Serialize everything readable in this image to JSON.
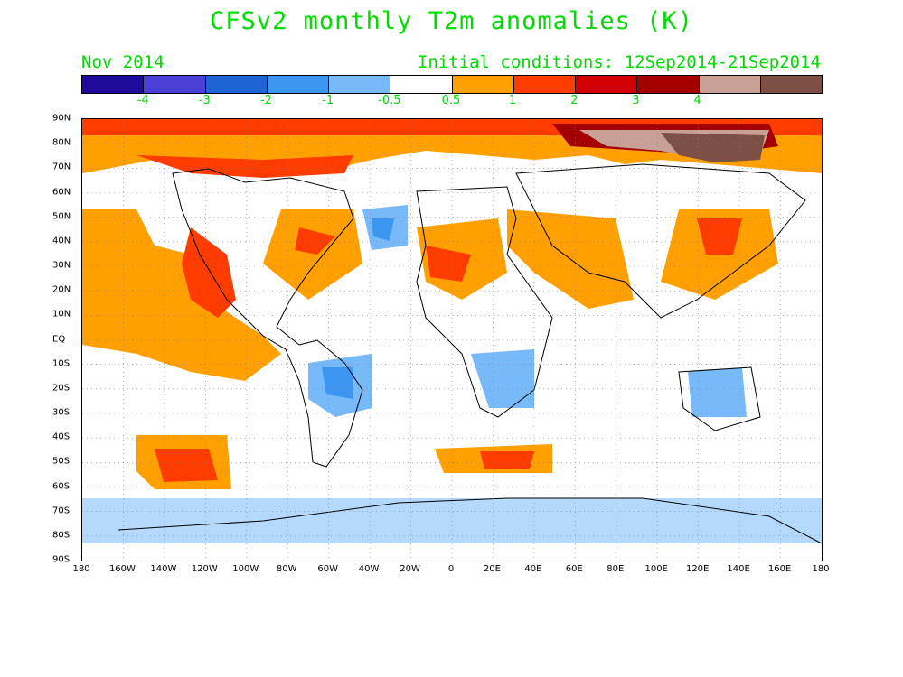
{
  "title": "CFSv2 monthly T2m anomalies (K)",
  "subtitle_left": "Nov 2014",
  "subtitle_right": "Initial conditions: 12Sep2014-21Sep2014",
  "colorbar": {
    "colors": [
      "#1e0a9b",
      "#4a3fd6",
      "#1e64d6",
      "#3c96f0",
      "#78b9fa",
      "#ffffff",
      "#ffa000",
      "#ff3c00",
      "#d20000",
      "#a50000",
      "#c8a096",
      "#7d5046"
    ],
    "labels": [
      "-4",
      "-3",
      "-2",
      "-1",
      "-0.5",
      "0.5",
      "1",
      "2",
      "3",
      "4"
    ]
  },
  "lat_labels": [
    "90N",
    "80N",
    "70N",
    "60N",
    "50N",
    "40N",
    "30N",
    "20N",
    "10N",
    "EQ",
    "10S",
    "20S",
    "30S",
    "40S",
    "50S",
    "60S",
    "70S",
    "80S",
    "90S"
  ],
  "lon_labels": [
    "180",
    "160W",
    "140W",
    "120W",
    "100W",
    "80W",
    "60W",
    "40W",
    "20W",
    "0",
    "20E",
    "40E",
    "60E",
    "80E",
    "100E",
    "120E",
    "140E",
    "160E",
    "180"
  ]
}
